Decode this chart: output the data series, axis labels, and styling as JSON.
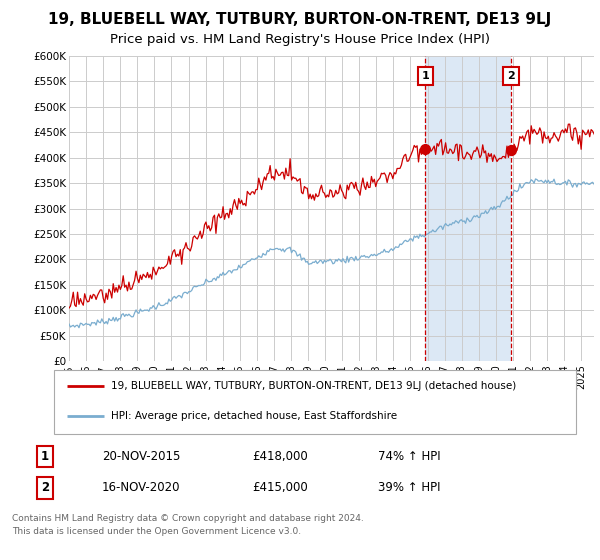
{
  "title": "19, BLUEBELL WAY, TUTBURY, BURTON-ON-TRENT, DE13 9LJ",
  "subtitle": "Price paid vs. HM Land Registry's House Price Index (HPI)",
  "ylabel_ticks": [
    "£0",
    "£50K",
    "£100K",
    "£150K",
    "£200K",
    "£250K",
    "£300K",
    "£350K",
    "£400K",
    "£450K",
    "£500K",
    "£550K",
    "£600K"
  ],
  "ylim": [
    0,
    600000
  ],
  "ytick_vals": [
    0,
    50000,
    100000,
    150000,
    200000,
    250000,
    300000,
    350000,
    400000,
    450000,
    500000,
    550000,
    600000
  ],
  "xmin_year": 1995,
  "xmax_year": 2025,
  "xtick_years": [
    1995,
    1996,
    1997,
    1998,
    1999,
    2000,
    2001,
    2002,
    2003,
    2004,
    2005,
    2006,
    2007,
    2008,
    2009,
    2010,
    2011,
    2012,
    2013,
    2014,
    2015,
    2016,
    2017,
    2018,
    2019,
    2020,
    2021,
    2022,
    2023,
    2024,
    2025
  ],
  "red_line_color": "#cc0000",
  "blue_line_color": "#7aadcf",
  "vline_color": "#cc0000",
  "annotation_box_color": "#cc0000",
  "background_color": "#ffffff",
  "chart_bg_color": "#ffffff",
  "shaded_bg_color": "#dce8f5",
  "grid_color": "#cccccc",
  "legend_label_red": "19, BLUEBELL WAY, TUTBURY, BURTON-ON-TRENT, DE13 9LJ (detached house)",
  "legend_label_blue": "HPI: Average price, detached house, East Staffordshire",
  "sale1_date": "20-NOV-2015",
  "sale1_price": 418000,
  "sale1_label": "74% ↑ HPI",
  "sale1_year": 2015.88,
  "sale2_date": "16-NOV-2020",
  "sale2_price": 415000,
  "sale2_label": "39% ↑ HPI",
  "sale2_year": 2020.88,
  "footer_text": "Contains HM Land Registry data © Crown copyright and database right 2024.\nThis data is licensed under the Open Government Licence v3.0.",
  "title_fontsize": 11,
  "subtitle_fontsize": 9.5
}
